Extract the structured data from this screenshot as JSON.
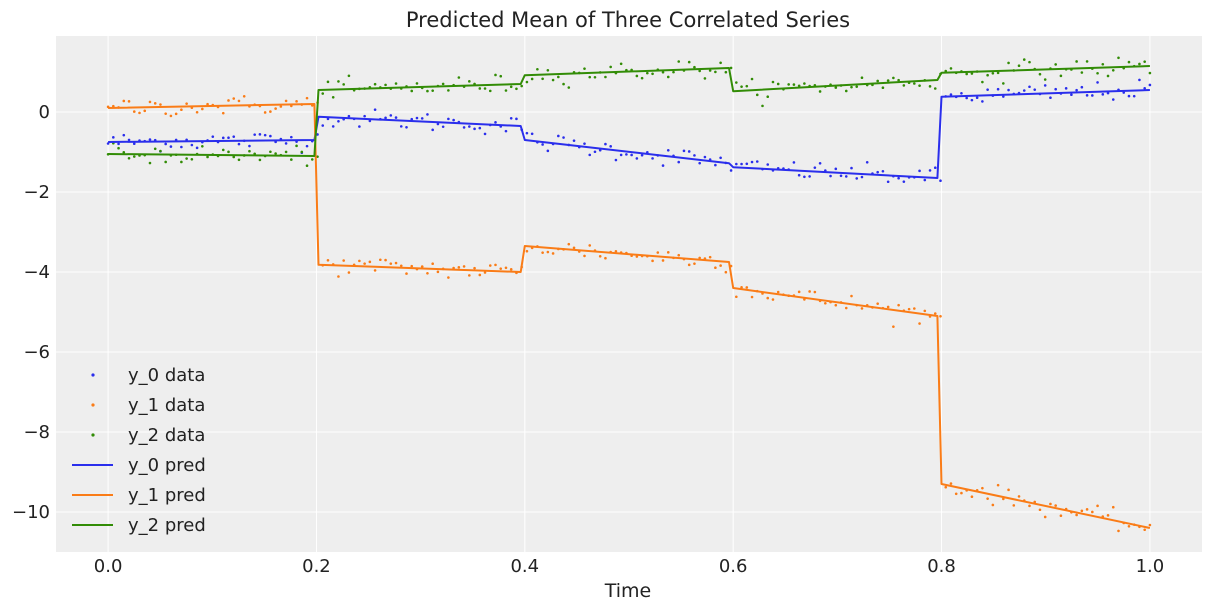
{
  "chart_data": {
    "type": "line",
    "title": "Predicted Mean of Three Correlated Series",
    "xlabel": "Time",
    "ylabel": "",
    "xlim": [
      -0.05,
      1.05
    ],
    "ylim": [
      -11,
      1.9
    ],
    "xticks": [
      0.0,
      0.2,
      0.4,
      0.6,
      0.8,
      1.0
    ],
    "xtick_labels": [
      "0.0",
      "0.2",
      "0.4",
      "0.6",
      "0.8",
      "1.0"
    ],
    "yticks": [
      0,
      -2,
      -4,
      -6,
      -8,
      -10
    ],
    "ytick_labels": [
      "0",
      "−2",
      "−4",
      "−6",
      "−8",
      "−10"
    ],
    "grid": true,
    "legend_position": "lower-left",
    "colors": {
      "y_0": "#2a2eec",
      "y_1": "#fa7c17",
      "y_2": "#328c06",
      "background": "#eeeeee",
      "grid": "#ffffff"
    },
    "series": [
      {
        "name": "y_0 pred",
        "kind": "line",
        "color": "#2a2eec",
        "segments": [
          {
            "x": [
              0.0,
              0.198
            ],
            "y": [
              -0.75,
              -0.7
            ]
          },
          {
            "x": [
              0.202,
              0.396
            ],
            "y": [
              -0.12,
              -0.35
            ]
          },
          {
            "x": [
              0.4,
              0.596
            ],
            "y": [
              -0.7,
              -1.28
            ]
          },
          {
            "x": [
              0.6,
              0.796
            ],
            "y": [
              -1.38,
              -1.65
            ]
          },
          {
            "x": [
              0.8,
              1.0
            ],
            "y": [
              0.38,
              0.55
            ]
          }
        ]
      },
      {
        "name": "y_1 pred",
        "kind": "line",
        "color": "#fa7c17",
        "segments": [
          {
            "x": [
              0.0,
              0.198
            ],
            "y": [
              0.1,
              0.2
            ]
          },
          {
            "x": [
              0.202,
              0.396
            ],
            "y": [
              -3.82,
              -4.0
            ]
          },
          {
            "x": [
              0.4,
              0.596
            ],
            "y": [
              -3.35,
              -3.75
            ]
          },
          {
            "x": [
              0.6,
              0.796
            ],
            "y": [
              -4.4,
              -5.1
            ]
          },
          {
            "x": [
              0.8,
              1.0
            ],
            "y": [
              -9.3,
              -10.4
            ]
          }
        ]
      },
      {
        "name": "y_2 pred",
        "kind": "line",
        "color": "#328c06",
        "segments": [
          {
            "x": [
              0.0,
              0.198
            ],
            "y": [
              -1.05,
              -1.1
            ]
          },
          {
            "x": [
              0.202,
              0.396
            ],
            "y": [
              0.55,
              0.7
            ]
          },
          {
            "x": [
              0.4,
              0.596
            ],
            "y": [
              0.92,
              1.1
            ]
          },
          {
            "x": [
              0.6,
              0.796
            ],
            "y": [
              0.52,
              0.8
            ]
          },
          {
            "x": [
              0.8,
              1.0
            ],
            "y": [
              0.98,
              1.15
            ]
          }
        ]
      },
      {
        "name": "y_0 data",
        "kind": "scatter",
        "color": "#2a2eec",
        "of": "y_0 pred",
        "noise": 0.12,
        "n": 200
      },
      {
        "name": "y_1 data",
        "kind": "scatter",
        "color": "#fa7c17",
        "of": "y_1 pred",
        "noise": 0.12,
        "n": 200
      },
      {
        "name": "y_2 data",
        "kind": "scatter",
        "color": "#328c06",
        "of": "y_2 pred",
        "noise": 0.12,
        "n": 200
      }
    ],
    "legend": [
      {
        "label": "y_0 data",
        "kind": "marker",
        "color": "#2a2eec"
      },
      {
        "label": "y_1 data",
        "kind": "marker",
        "color": "#fa7c17"
      },
      {
        "label": "y_2 data",
        "kind": "marker",
        "color": "#328c06"
      },
      {
        "label": "y_0 pred",
        "kind": "line",
        "color": "#2a2eec"
      },
      {
        "label": "y_1 pred",
        "kind": "line",
        "color": "#fa7c17"
      },
      {
        "label": "y_2 pred",
        "kind": "line",
        "color": "#328c06"
      }
    ]
  }
}
